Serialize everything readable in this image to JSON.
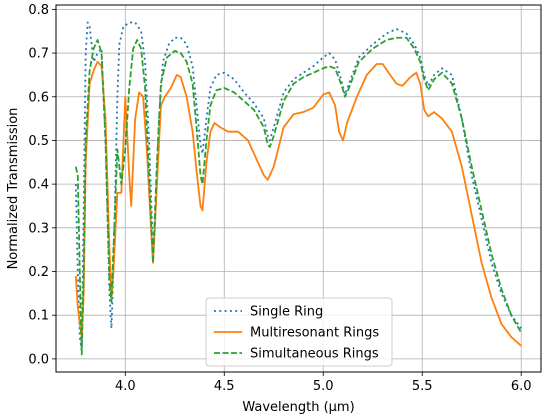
{
  "chart_data": {
    "type": "line",
    "xlabel": "Wavelength (µm)",
    "ylabel": "Normalized Transmission",
    "xlim": [
      3.65,
      6.1
    ],
    "ylim": [
      -0.03,
      0.81
    ],
    "xticks": [
      4.0,
      4.5,
      5.0,
      5.5,
      6.0
    ],
    "xtick_labels": [
      "4.0",
      "4.5",
      "5.0",
      "5.5",
      "6.0"
    ],
    "yticks": [
      0.0,
      0.1,
      0.2,
      0.3,
      0.4,
      0.5,
      0.6,
      0.7,
      0.8
    ],
    "ytick_labels": [
      "0.0",
      "0.1",
      "0.2",
      "0.3",
      "0.4",
      "0.5",
      "0.6",
      "0.7",
      "0.8"
    ],
    "grid": true,
    "legend_position": "bottom-center",
    "series": [
      {
        "name": "Single Ring",
        "color": "#1f77b4",
        "style": "dotted",
        "points": [
          [
            3.75,
            0.4
          ],
          [
            3.76,
            0.2
          ],
          [
            3.77,
            0.05
          ],
          [
            3.78,
            0.02
          ],
          [
            3.79,
            0.35
          ],
          [
            3.8,
            0.7
          ],
          [
            3.81,
            0.77
          ],
          [
            3.82,
            0.76
          ],
          [
            3.84,
            0.68
          ],
          [
            3.86,
            0.7
          ],
          [
            3.88,
            0.71
          ],
          [
            3.9,
            0.5
          ],
          [
            3.92,
            0.15
          ],
          [
            3.93,
            0.07
          ],
          [
            3.94,
            0.2
          ],
          [
            3.95,
            0.4
          ],
          [
            3.96,
            0.6
          ],
          [
            3.97,
            0.72
          ],
          [
            3.99,
            0.76
          ],
          [
            4.02,
            0.77
          ],
          [
            4.05,
            0.77
          ],
          [
            4.08,
            0.75
          ],
          [
            4.1,
            0.68
          ],
          [
            4.12,
            0.5
          ],
          [
            4.14,
            0.25
          ],
          [
            4.15,
            0.3
          ],
          [
            4.17,
            0.55
          ],
          [
            4.19,
            0.68
          ],
          [
            4.22,
            0.72
          ],
          [
            4.25,
            0.735
          ],
          [
            4.28,
            0.735
          ],
          [
            4.31,
            0.72
          ],
          [
            4.34,
            0.67
          ],
          [
            4.36,
            0.58
          ],
          [
            4.38,
            0.49
          ],
          [
            4.39,
            0.47
          ],
          [
            4.41,
            0.55
          ],
          [
            4.43,
            0.62
          ],
          [
            4.46,
            0.65
          ],
          [
            4.5,
            0.655
          ],
          [
            4.55,
            0.64
          ],
          [
            4.6,
            0.61
          ],
          [
            4.65,
            0.585
          ],
          [
            4.7,
            0.55
          ],
          [
            4.72,
            0.51
          ],
          [
            4.73,
            0.5
          ],
          [
            4.75,
            0.53
          ],
          [
            4.8,
            0.61
          ],
          [
            4.85,
            0.64
          ],
          [
            4.9,
            0.655
          ],
          [
            4.95,
            0.67
          ],
          [
            5.0,
            0.69
          ],
          [
            5.03,
            0.7
          ],
          [
            5.06,
            0.685
          ],
          [
            5.09,
            0.64
          ],
          [
            5.11,
            0.605
          ],
          [
            5.13,
            0.63
          ],
          [
            5.18,
            0.69
          ],
          [
            5.25,
            0.72
          ],
          [
            5.32,
            0.745
          ],
          [
            5.37,
            0.755
          ],
          [
            5.42,
            0.745
          ],
          [
            5.46,
            0.72
          ],
          [
            5.49,
            0.69
          ],
          [
            5.51,
            0.65
          ],
          [
            5.53,
            0.625
          ],
          [
            5.56,
            0.65
          ],
          [
            5.6,
            0.665
          ],
          [
            5.65,
            0.65
          ],
          [
            5.7,
            0.55
          ],
          [
            5.75,
            0.42
          ],
          [
            5.8,
            0.32
          ],
          [
            5.85,
            0.22
          ],
          [
            5.9,
            0.15
          ],
          [
            5.95,
            0.1
          ],
          [
            6.0,
            0.07
          ]
        ]
      },
      {
        "name": "Multiresonant Rings",
        "color": "#ff7f0e",
        "style": "solid",
        "points": [
          [
            3.75,
            0.19
          ],
          [
            3.76,
            0.12
          ],
          [
            3.77,
            0.08
          ],
          [
            3.78,
            0.05
          ],
          [
            3.79,
            0.15
          ],
          [
            3.8,
            0.45
          ],
          [
            3.82,
            0.63
          ],
          [
            3.84,
            0.66
          ],
          [
            3.86,
            0.68
          ],
          [
            3.88,
            0.67
          ],
          [
            3.9,
            0.55
          ],
          [
            3.92,
            0.25
          ],
          [
            3.93,
            0.14
          ],
          [
            3.94,
            0.2
          ],
          [
            3.96,
            0.38
          ],
          [
            3.98,
            0.38
          ],
          [
            4.0,
            0.6
          ],
          [
            4.02,
            0.42
          ],
          [
            4.03,
            0.35
          ],
          [
            4.05,
            0.55
          ],
          [
            4.07,
            0.61
          ],
          [
            4.09,
            0.6
          ],
          [
            4.11,
            0.47
          ],
          [
            4.13,
            0.3
          ],
          [
            4.14,
            0.22
          ],
          [
            4.16,
            0.4
          ],
          [
            4.18,
            0.58
          ],
          [
            4.2,
            0.6
          ],
          [
            4.23,
            0.62
          ],
          [
            4.26,
            0.65
          ],
          [
            4.28,
            0.645
          ],
          [
            4.31,
            0.6
          ],
          [
            4.34,
            0.52
          ],
          [
            4.36,
            0.43
          ],
          [
            4.38,
            0.35
          ],
          [
            4.39,
            0.34
          ],
          [
            4.41,
            0.45
          ],
          [
            4.43,
            0.52
          ],
          [
            4.45,
            0.54
          ],
          [
            4.48,
            0.53
          ],
          [
            4.52,
            0.52
          ],
          [
            4.57,
            0.52
          ],
          [
            4.62,
            0.5
          ],
          [
            4.67,
            0.45
          ],
          [
            4.7,
            0.42
          ],
          [
            4.72,
            0.41
          ],
          [
            4.75,
            0.44
          ],
          [
            4.8,
            0.53
          ],
          [
            4.85,
            0.56
          ],
          [
            4.9,
            0.565
          ],
          [
            4.95,
            0.575
          ],
          [
            5.0,
            0.605
          ],
          [
            5.03,
            0.61
          ],
          [
            5.06,
            0.58
          ],
          [
            5.08,
            0.52
          ],
          [
            5.1,
            0.5
          ],
          [
            5.12,
            0.54
          ],
          [
            5.17,
            0.6
          ],
          [
            5.22,
            0.65
          ],
          [
            5.27,
            0.675
          ],
          [
            5.3,
            0.675
          ],
          [
            5.33,
            0.655
          ],
          [
            5.37,
            0.63
          ],
          [
            5.4,
            0.625
          ],
          [
            5.44,
            0.645
          ],
          [
            5.47,
            0.655
          ],
          [
            5.49,
            0.63
          ],
          [
            5.51,
            0.57
          ],
          [
            5.53,
            0.555
          ],
          [
            5.56,
            0.565
          ],
          [
            5.6,
            0.55
          ],
          [
            5.65,
            0.52
          ],
          [
            5.7,
            0.44
          ],
          [
            5.75,
            0.33
          ],
          [
            5.8,
            0.22
          ],
          [
            5.85,
            0.14
          ],
          [
            5.9,
            0.08
          ],
          [
            5.95,
            0.05
          ],
          [
            6.0,
            0.03
          ]
        ]
      },
      {
        "name": "Simultaneous Rings",
        "color": "#2ca02c",
        "style": "dashed",
        "points": [
          [
            3.75,
            0.44
          ],
          [
            3.76,
            0.42
          ],
          [
            3.77,
            0.2
          ],
          [
            3.78,
            0.01
          ],
          [
            3.79,
            0.2
          ],
          [
            3.8,
            0.5
          ],
          [
            3.82,
            0.66
          ],
          [
            3.84,
            0.71
          ],
          [
            3.86,
            0.73
          ],
          [
            3.88,
            0.7
          ],
          [
            3.9,
            0.5
          ],
          [
            3.92,
            0.18
          ],
          [
            3.93,
            0.13
          ],
          [
            3.94,
            0.25
          ],
          [
            3.96,
            0.48
          ],
          [
            3.98,
            0.4
          ],
          [
            4.0,
            0.48
          ],
          [
            4.02,
            0.62
          ],
          [
            4.04,
            0.71
          ],
          [
            4.06,
            0.73
          ],
          [
            4.08,
            0.71
          ],
          [
            4.1,
            0.62
          ],
          [
            4.12,
            0.42
          ],
          [
            4.14,
            0.22
          ],
          [
            4.16,
            0.45
          ],
          [
            4.18,
            0.63
          ],
          [
            4.21,
            0.69
          ],
          [
            4.25,
            0.705
          ],
          [
            4.28,
            0.7
          ],
          [
            4.31,
            0.68
          ],
          [
            4.34,
            0.63
          ],
          [
            4.36,
            0.53
          ],
          [
            4.38,
            0.42
          ],
          [
            4.39,
            0.4
          ],
          [
            4.41,
            0.5
          ],
          [
            4.43,
            0.58
          ],
          [
            4.46,
            0.615
          ],
          [
            4.5,
            0.62
          ],
          [
            4.55,
            0.61
          ],
          [
            4.6,
            0.59
          ],
          [
            4.65,
            0.57
          ],
          [
            4.7,
            0.53
          ],
          [
            4.72,
            0.49
          ],
          [
            4.73,
            0.485
          ],
          [
            4.75,
            0.51
          ],
          [
            4.8,
            0.59
          ],
          [
            4.85,
            0.63
          ],
          [
            4.9,
            0.645
          ],
          [
            4.95,
            0.655
          ],
          [
            5.0,
            0.665
          ],
          [
            5.03,
            0.67
          ],
          [
            5.06,
            0.665
          ],
          [
            5.09,
            0.63
          ],
          [
            5.11,
            0.6
          ],
          [
            5.13,
            0.62
          ],
          [
            5.18,
            0.68
          ],
          [
            5.25,
            0.71
          ],
          [
            5.32,
            0.73
          ],
          [
            5.37,
            0.735
          ],
          [
            5.42,
            0.735
          ],
          [
            5.46,
            0.71
          ],
          [
            5.49,
            0.68
          ],
          [
            5.51,
            0.64
          ],
          [
            5.53,
            0.615
          ],
          [
            5.56,
            0.64
          ],
          [
            5.6,
            0.655
          ],
          [
            5.65,
            0.63
          ],
          [
            5.7,
            0.55
          ],
          [
            5.75,
            0.44
          ],
          [
            5.8,
            0.34
          ],
          [
            5.85,
            0.24
          ],
          [
            5.9,
            0.16
          ],
          [
            5.95,
            0.1
          ],
          [
            6.0,
            0.06
          ]
        ]
      }
    ]
  }
}
